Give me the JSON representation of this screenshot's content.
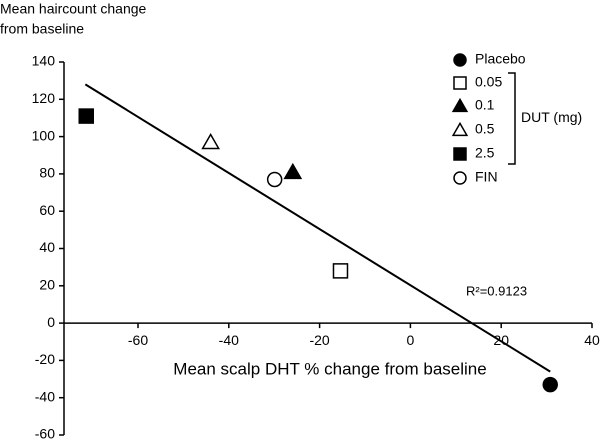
{
  "chart_data": {
    "type": "scatter",
    "ylabel": [
      "Mean haircount change",
      "from baseline"
    ],
    "xlabel": "Mean scalp DHT % change from baseline",
    "xlim": [
      -76.3,
      40
    ],
    "ylim": [
      -60,
      140
    ],
    "xticks": [
      -60,
      -40,
      -20,
      0,
      20,
      40
    ],
    "yticks": [
      -60,
      -40,
      -20,
      0,
      20,
      40,
      60,
      80,
      100,
      120,
      140
    ],
    "color": "#000000",
    "series": [
      {
        "name": "Placebo",
        "marker": "circle",
        "filled": true,
        "x": [
          30.8
        ],
        "values": [
          -33
        ]
      },
      {
        "name": "0.05",
        "marker": "square",
        "filled": false,
        "x": [
          -15.4
        ],
        "values": [
          28
        ]
      },
      {
        "name": "0.1",
        "marker": "triangle",
        "filled": true,
        "x": [
          -25.9
        ],
        "values": [
          81
        ]
      },
      {
        "name": "0.5",
        "marker": "triangle",
        "filled": false,
        "x": [
          -44
        ],
        "values": [
          97
        ]
      },
      {
        "name": "2.5",
        "marker": "square",
        "filled": true,
        "x": [
          -71.4
        ],
        "values": [
          111
        ]
      },
      {
        "name": "FIN",
        "marker": "circle",
        "filled": false,
        "x": [
          -29.9
        ],
        "values": [
          77
        ]
      }
    ],
    "legend_group": {
      "label": "DUT (mg)",
      "members": [
        1,
        2,
        3,
        4
      ]
    },
    "fit_line": {
      "x": [
        -71.6,
        30.8
      ],
      "y": [
        128,
        -26
      ]
    },
    "annotation": "R²=0.9123"
  }
}
